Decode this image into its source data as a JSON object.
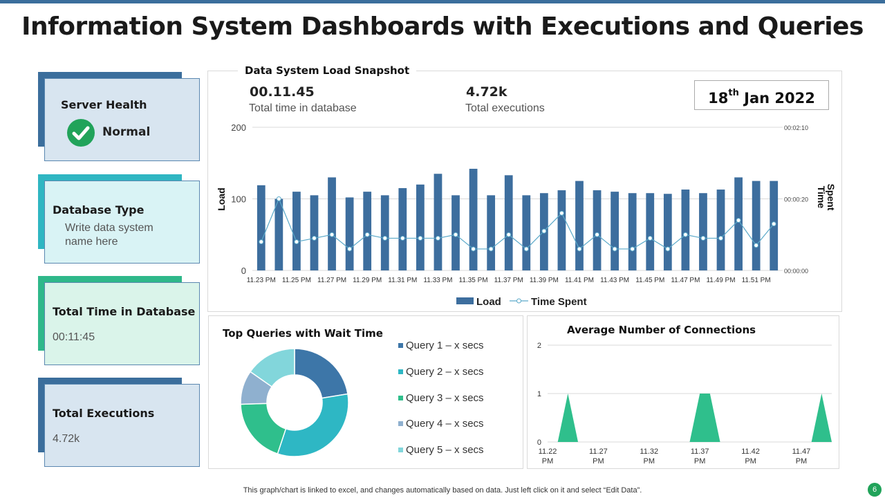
{
  "title": "Information System Dashboards with Executions and Queries",
  "cards": {
    "server_health": {
      "label": "Server Health",
      "status": "Normal"
    },
    "database_type": {
      "label": "Database Type",
      "value": "Write data system name here"
    },
    "total_time": {
      "label": "Total Time in Database",
      "value": "00:11:45"
    },
    "total_exec": {
      "label": "Total Executions",
      "value": "4.72k"
    }
  },
  "snapshot": {
    "title": "Data System Load Snapshot",
    "stat1_value": "00.11.45",
    "stat1_label": "Total time in database",
    "stat2_value": "4.72k",
    "stat2_label": "Total executions",
    "date_day": "18",
    "date_suffix": "th",
    "date_rest": " Jan 2022"
  },
  "queries": {
    "title": "Top Queries with Wait Time",
    "items": [
      "Query 1 – x secs",
      "Query 2 – x secs",
      "Query 3 – x secs",
      "Query 4 – x secs",
      "Query 5 – x secs"
    ],
    "colors": [
      "#3d76a8",
      "#2eb7c4",
      "#2fbf8c",
      "#8fb0cf",
      "#82d6db"
    ]
  },
  "connections": {
    "title": "Average Number of Connections"
  },
  "footnote": "This graph/chart is linked to excel,  and changes automatically based on data. Just left click on it and select “Edit Data”.",
  "page_number": "6",
  "colors": {
    "load_bar": "#3d6e9e",
    "time_line": "#5aa9c9",
    "area": "#2fbf8c"
  },
  "chart_data": [
    {
      "type": "bar",
      "title": "Data System Load Snapshot",
      "categories": [
        "11.23 PM",
        "11.24 PM",
        "11.25 PM",
        "11.26 PM",
        "11.27 PM",
        "11.28 PM",
        "11.29 PM",
        "11.30 PM",
        "11.31 PM",
        "11.32 PM",
        "11.33 PM",
        "11.34 PM",
        "11.35 PM",
        "11.36 PM",
        "11.37 PM",
        "11.38 PM",
        "11.39 PM",
        "11.40 PM",
        "11.41 PM",
        "11.42 PM",
        "11.43 PM",
        "11.44 PM",
        "11.45 PM",
        "11.46 PM",
        "11.47 PM",
        "11.48 PM",
        "11.49 PM",
        "11.50 PM",
        "11.51 PM",
        "11.52 PM"
      ],
      "tick_labels": [
        "11.23 PM",
        "11.25 PM",
        "11.27 PM",
        "11.29 PM",
        "11.31 PM",
        "11.33 PM",
        "11.35 PM",
        "11.37 PM",
        "11.39 PM",
        "11.41 PM",
        "11.43 PM",
        "11.45 PM",
        "11.47 PM",
        "11.49 PM",
        "11.51 PM"
      ],
      "series": [
        {
          "name": "Load",
          "axis": "left",
          "values": [
            119,
            100,
            110,
            105,
            130,
            102,
            110,
            105,
            115,
            120,
            135,
            105,
            142,
            105,
            133,
            105,
            108,
            112,
            125,
            112,
            110,
            108,
            108,
            107,
            113,
            108,
            113,
            130,
            125,
            125
          ]
        },
        {
          "name": "Time Spent",
          "axis": "right",
          "values_seconds": [
            8,
            20,
            8,
            9,
            10,
            6,
            10,
            9,
            9,
            9,
            9,
            10,
            6,
            6,
            10,
            6,
            11,
            16,
            6,
            10,
            6,
            6,
            9,
            6,
            10,
            9,
            9,
            14,
            7,
            13
          ]
        }
      ],
      "ylabel": "Load",
      "ylim": [
        0,
        200
      ],
      "yticks": [
        0,
        100,
        200
      ],
      "y2label": "Time Spent",
      "y2ticks": [
        "00:00:00",
        "00:00:20",
        "00:02:10"
      ],
      "legend": [
        "Load",
        "Time Spent"
      ],
      "legend_position": "bottom"
    },
    {
      "type": "pie",
      "title": "Top Queries with Wait Time",
      "labels": [
        "Query 1 – x secs",
        "Query 2 – x secs",
        "Query 3 – x secs",
        "Query 4 – x secs",
        "Query 5 – x secs"
      ],
      "values": [
        22,
        32,
        19,
        10,
        15
      ],
      "donut": true,
      "legend_position": "right"
    },
    {
      "type": "area",
      "title": "Average Number of Connections",
      "x": [
        "11.22",
        "11.23",
        "11.24",
        "11.25",
        "11.26",
        "11.27",
        "11.28",
        "11.29",
        "11.30",
        "11.31",
        "11.32",
        "11.33",
        "11.34",
        "11.35",
        "11.36",
        "11.37",
        "11.38",
        "11.39",
        "11.40",
        "11.41",
        "11.42",
        "11.43",
        "11.44",
        "11.45",
        "11.46",
        "11.47",
        "11.48",
        "11.49",
        "11.50"
      ],
      "tick_labels": [
        "11.22 PM",
        "11.27 PM",
        "11.32 PM",
        "11.37 PM",
        "11.42 PM",
        "11.47 PM"
      ],
      "values": [
        0,
        0,
        1,
        0,
        0,
        0,
        0,
        0,
        0,
        0,
        0,
        0,
        0,
        0,
        0,
        1,
        1,
        0,
        0,
        0,
        0,
        0,
        0,
        0,
        0,
        0,
        0,
        1,
        0
      ],
      "ylim": [
        0,
        2
      ],
      "yticks": [
        0,
        1,
        2
      ]
    }
  ]
}
